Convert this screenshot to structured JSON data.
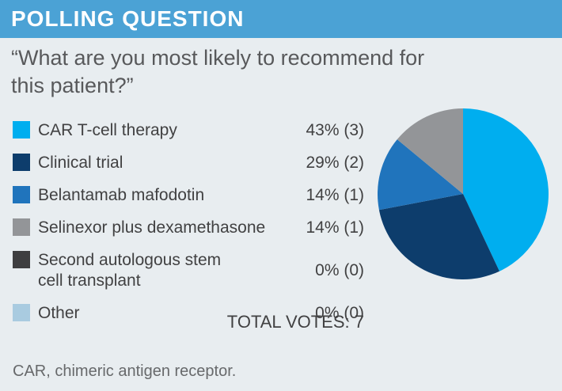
{
  "header": {
    "title": "POLLING QUESTION"
  },
  "question": {
    "text": "“What are you most likely to recommend for this patient?”"
  },
  "poll": {
    "options": [
      {
        "label": "CAR T-cell therapy",
        "value_text": "43% (3)",
        "color": "#00AEEF"
      },
      {
        "label": "Clinical trial",
        "value_text": "29% (2)",
        "color": "#0D3D6C"
      },
      {
        "label": "Belantamab mafodotin",
        "value_text": "14% (1)",
        "color": "#2074BC"
      },
      {
        "label": "Selinexor plus dexamethasone",
        "value_text": "14% (1)",
        "color": "#939598"
      },
      {
        "label": "Second autologous stem cell transplant",
        "value_text": "0% (0)",
        "color": "#3E3E40"
      },
      {
        "label": "Other",
        "value_text": "0% (0)",
        "color": "#A9CBE0"
      }
    ],
    "total_label": "TOTAL VOTES: 7"
  },
  "footnote": {
    "text": "CAR, chimeric antigen receptor."
  },
  "chart_data": {
    "type": "pie",
    "title": "POLLING QUESTION",
    "question": "What are you most likely to recommend for this patient?",
    "categories": [
      "CAR T-cell therapy",
      "Clinical trial",
      "Belantamab mafodotin",
      "Selinexor plus dexamethasone",
      "Second autologous stem cell transplant",
      "Other"
    ],
    "values": [
      43,
      29,
      14,
      14,
      0,
      0
    ],
    "counts": [
      3,
      2,
      1,
      1,
      0,
      0
    ],
    "colors": [
      "#00AEEF",
      "#0D3D6C",
      "#2074BC",
      "#939598",
      "#3E3E40",
      "#A9CBE0"
    ],
    "total_votes": 7,
    "start_angle": "12 o'clock",
    "direction": "clockwise",
    "legend_position": "left"
  },
  "colors": {
    "header_bg": "#4BA2D5",
    "page_bg": "#E8EDF0",
    "question_text": "#58595B",
    "legend_text": "#414142",
    "footnote_text": "#67696B"
  }
}
